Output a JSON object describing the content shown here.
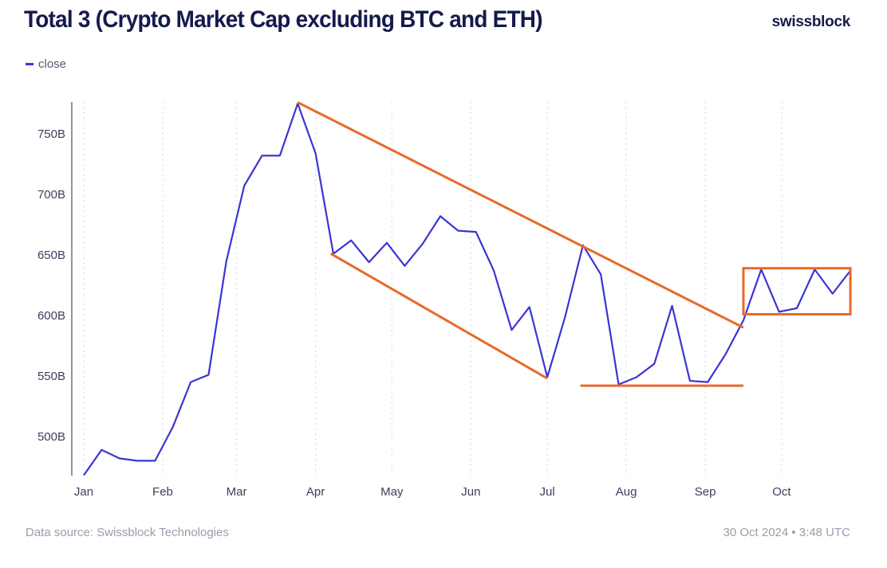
{
  "header": {
    "title": "Total 3 (Crypto Market Cap excluding BTC and ETH)",
    "logo": "swissblock"
  },
  "footer": {
    "source": "Data source: Swissblock Technologies",
    "timestamp": "30 Oct 2024 • 3:48 UTC"
  },
  "colors": {
    "line": "#3a35d4",
    "annotation": "#e8692a",
    "title": "#151a4d"
  },
  "chart_data": {
    "type": "line",
    "title": "Total 3 (Crypto Market Cap excluding BTC and ETH)",
    "legend": {
      "position": "top-left",
      "entries": [
        "close"
      ]
    },
    "grid": {
      "vertical": "dotted",
      "horizontal": false
    },
    "x_ticks": [
      {
        "label": "Jan",
        "date": "2024-01-01"
      },
      {
        "label": "Feb",
        "date": "2024-02-01"
      },
      {
        "label": "Mar",
        "date": "2024-03-01"
      },
      {
        "label": "Apr",
        "date": "2024-04-01"
      },
      {
        "label": "May",
        "date": "2024-05-01"
      },
      {
        "label": "Jun",
        "date": "2024-06-01"
      },
      {
        "label": "Jul",
        "date": "2024-07-01"
      },
      {
        "label": "Aug",
        "date": "2024-08-01"
      },
      {
        "label": "Sep",
        "date": "2024-09-01"
      },
      {
        "label": "Oct",
        "date": "2024-10-01"
      }
    ],
    "y_ticks": [
      {
        "label": "500B",
        "value": 500
      },
      {
        "label": "550B",
        "value": 550
      },
      {
        "label": "600B",
        "value": 600
      },
      {
        "label": "650B",
        "value": 650
      },
      {
        "label": "700B",
        "value": 700
      },
      {
        "label": "750B",
        "value": 750
      }
    ],
    "ylim": [
      468,
      778
    ],
    "unit": "B",
    "series": [
      {
        "name": "close",
        "x_start": "2024-01-01",
        "x_step_days": 7,
        "values": [
          468,
          489,
          482,
          480,
          480,
          508,
          545,
          551,
          645,
          707,
          732,
          732,
          775,
          734,
          651,
          662,
          644,
          660,
          641,
          659,
          682,
          670,
          669,
          637,
          588,
          607,
          549,
          599,
          658,
          634,
          543,
          549,
          560,
          608,
          546,
          545,
          568,
          596,
          638,
          603,
          606,
          638,
          618,
          637
        ]
      }
    ],
    "annotations": [
      {
        "type": "trendline",
        "from": {
          "date": "2024-03-25",
          "value": 776
        },
        "to": {
          "date": "2024-09-16",
          "value": 590
        }
      },
      {
        "type": "trendline",
        "from": {
          "date": "2024-04-07",
          "value": 651
        },
        "to": {
          "date": "2024-07-01",
          "value": 548
        }
      },
      {
        "type": "support",
        "from": {
          "date": "2024-07-14",
          "value": 542
        },
        "to": {
          "date": "2024-09-16",
          "value": 542
        }
      },
      {
        "type": "range-box",
        "from": {
          "date": "2024-09-16",
          "value": 639
        },
        "to": {
          "date": "2024-10-28",
          "value": 601
        }
      }
    ]
  }
}
